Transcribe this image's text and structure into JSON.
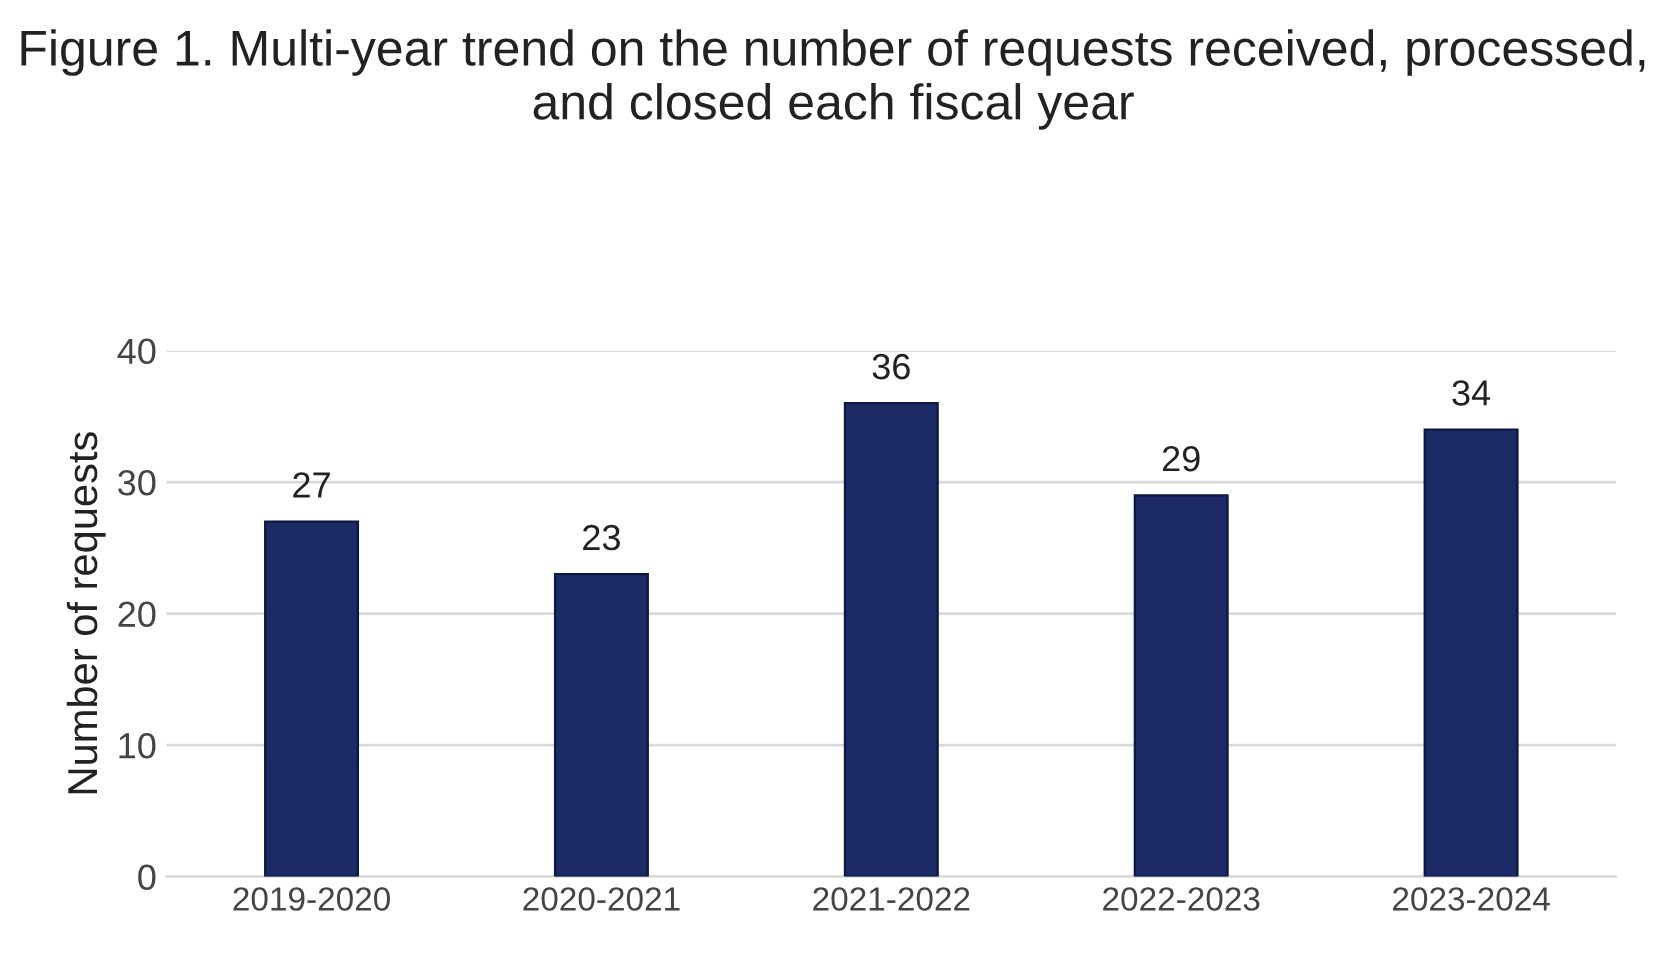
{
  "chart_data": {
    "type": "bar",
    "title": "Figure 1. Multi-year trend on the number of requests received, processed, and closed each fiscal year",
    "ylabel": "Number of requests",
    "categories": [
      "2019-2020",
      "2020-2021",
      "2021-2022",
      "2022-2023",
      "2023-2024"
    ],
    "values": [
      27,
      23,
      36,
      29,
      34
    ],
    "color": "#1c2a66",
    "ylim": [
      0,
      40
    ],
    "yticks": [
      0,
      10,
      20,
      30,
      40
    ],
    "grid": "y",
    "data_labels": true
  }
}
